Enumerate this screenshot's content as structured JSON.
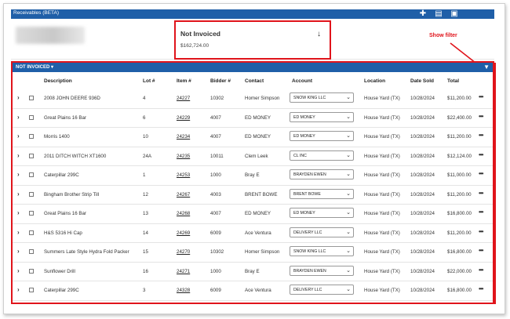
{
  "topbar": {
    "title": "Receivables (BETA)",
    "icons": [
      "plus-icon",
      "document-icon",
      "save-icon"
    ]
  },
  "summary": {
    "card_title": "Not Invoiced",
    "card_value": "$162,724.00",
    "card_icon": "arrow-down-icon"
  },
  "annotation": {
    "text": "Show filter",
    "color": "#e0141b"
  },
  "filter_bar": {
    "label": "NOT INVOICED ▾",
    "icon": "filter-icon"
  },
  "columns": {
    "description": "Description",
    "lot": "Lot #",
    "item": "Item #",
    "bidder": "Bidder #",
    "contact": "Contact",
    "account": "Account",
    "location": "Location",
    "date_sold": "Date Sold",
    "total": "Total"
  },
  "rows": [
    {
      "description": "2008 JOHN DEERE 936D",
      "lot": "4",
      "item": "24227",
      "bidder": "10302",
      "contact": "Homer Simpson",
      "account": "SNOW KING LLC",
      "location": "House Yard (TX)",
      "date_sold": "10/28/2024",
      "total": "$11,200.00"
    },
    {
      "description": "Great Plains 16 Bar",
      "lot": "6",
      "item": "24229",
      "bidder": "4007",
      "contact": "ED MONEY",
      "account": "ED MONEY",
      "location": "House Yard (TX)",
      "date_sold": "10/28/2024",
      "total": "$22,400.00"
    },
    {
      "description": "Morris 1400",
      "lot": "10",
      "item": "24234",
      "bidder": "4007",
      "contact": "ED MONEY",
      "account": "ED MONEY",
      "location": "House Yard (TX)",
      "date_sold": "10/28/2024",
      "total": "$11,200.00"
    },
    {
      "description": "2011 DITCH WITCH XT1600",
      "lot": "24A",
      "item": "24235",
      "bidder": "10011",
      "contact": "Clem Leek",
      "account": "CL INC",
      "location": "House Yard (TX)",
      "date_sold": "10/28/2024",
      "total": "$12,124.00"
    },
    {
      "description": "Caterpillar 299C",
      "lot": "1",
      "item": "24253",
      "bidder": "1000",
      "contact": "Bray E",
      "account": "BRAYDEN EWEN",
      "location": "House Yard (TX)",
      "date_sold": "10/28/2024",
      "total": "$11,000.00"
    },
    {
      "description": "Bingham Brother Strip Till",
      "lot": "12",
      "item": "24267",
      "bidder": "4003",
      "contact": "BRENT BOWE",
      "account": "BRENT BOWE",
      "location": "House Yard (TX)",
      "date_sold": "10/28/2024",
      "total": "$11,200.00"
    },
    {
      "description": "Great Plains 16 Bar",
      "lot": "13",
      "item": "24268",
      "bidder": "4007",
      "contact": "ED MONEY",
      "account": "ED MONEY",
      "location": "House Yard (TX)",
      "date_sold": "10/28/2024",
      "total": "$16,800.00"
    },
    {
      "description": "H&S 5316 Hi Cap",
      "lot": "14",
      "item": "24269",
      "bidder": "6009",
      "contact": "Ace Ventura",
      "account": "DELIVERY LLC",
      "location": "House Yard (TX)",
      "date_sold": "10/28/2024",
      "total": "$11,200.00"
    },
    {
      "description": "Summers Late Style Hydra Fold Packer",
      "lot": "15",
      "item": "24270",
      "bidder": "10302",
      "contact": "Homer Simpson",
      "account": "SNOW KING LLC",
      "location": "House Yard (TX)",
      "date_sold": "10/28/2024",
      "total": "$16,800.00"
    },
    {
      "description": "Sunflower Drill",
      "lot": "16",
      "item": "24271",
      "bidder": "1000",
      "contact": "Bray E",
      "account": "BRAYDEN EWEN",
      "location": "House Yard (TX)",
      "date_sold": "10/28/2024",
      "total": "$22,000.00"
    },
    {
      "description": "Caterpillar 299C",
      "lot": "3",
      "item": "24328",
      "bidder": "6009",
      "contact": "Ace Ventura",
      "account": "DELIVERY LLC",
      "location": "House Yard (TX)",
      "date_sold": "10/28/2024",
      "total": "$16,800.00"
    }
  ],
  "colors": {
    "header_blue": "#1f5fa8",
    "highlight_red": "#e0141b"
  }
}
